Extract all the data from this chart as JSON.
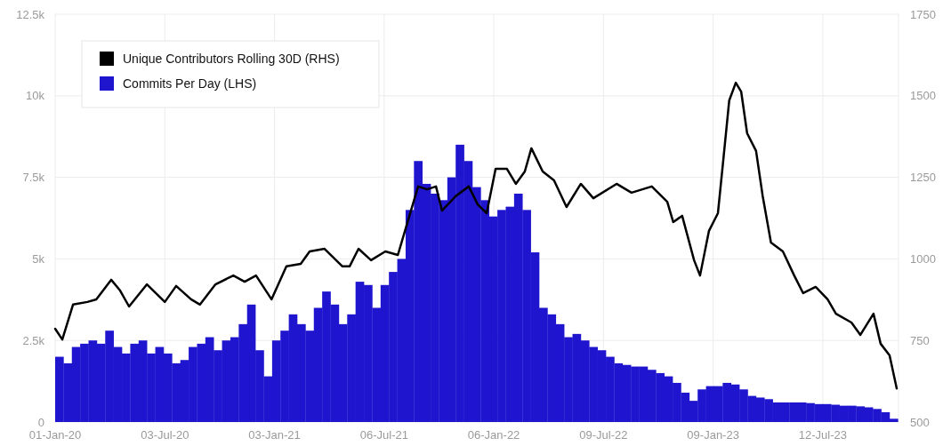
{
  "chart_data": {
    "type": "bar",
    "xlim": [
      "2020-01-01",
      "2023-11-16"
    ],
    "xticks": [
      {
        "value": "2020-01-01",
        "label": "01-Jan-20"
      },
      {
        "value": "2020-07-03",
        "label": "03-Jul-20"
      },
      {
        "value": "2021-01-03",
        "label": "03-Jan-21"
      },
      {
        "value": "2021-07-06",
        "label": "06-Jul-21"
      },
      {
        "value": "2022-01-06",
        "label": "06-Jan-22"
      },
      {
        "value": "2022-07-09",
        "label": "09-Jul-22"
      },
      {
        "value": "2023-01-09",
        "label": "09-Jan-23"
      },
      {
        "value": "2023-07-12",
        "label": "12-Jul-23"
      }
    ],
    "ylim": [
      0,
      12500
    ],
    "yticks": [
      0,
      {
        "value": 2500,
        "label": "2.5k"
      },
      {
        "value": 5000,
        "label": "5k"
      },
      {
        "value": 7500,
        "label": "7.5k"
      },
      {
        "value": 10000,
        "label": "10k"
      },
      {
        "value": 12500,
        "label": "12.5k"
      }
    ],
    "y2lim": [
      500,
      1750
    ],
    "y2ticks": [
      500,
      750,
      1000,
      1250,
      1500,
      1750
    ],
    "grid": true,
    "legend": "top left",
    "series": [
      {
        "name": "Unique Contributors Rolling 30D (RHS)",
        "type": "line",
        "axis": "y2",
        "color": "#000000",
        "x": [
          "2020-01-01",
          "2020-01-13",
          "2020-01-31",
          "2020-02-24",
          "2020-03-10",
          "2020-04-04",
          "2020-04-19",
          "2020-05-04",
          "2020-06-03",
          "2020-07-03",
          "2020-07-22",
          "2020-08-16",
          "2020-08-31",
          "2020-09-26",
          "2020-10-26",
          "2020-11-14",
          "2020-12-03",
          "2020-12-29",
          "2021-01-23",
          "2021-02-16",
          "2021-03-03",
          "2021-03-28",
          "2021-04-27",
          "2021-05-09",
          "2021-05-24",
          "2021-06-14",
          "2021-07-08",
          "2021-07-29",
          "2021-08-13",
          "2021-09-01",
          "2021-09-16",
          "2021-10-01",
          "2021-10-11",
          "2021-11-04",
          "2021-11-25",
          "2021-12-10",
          "2021-12-25",
          "2022-01-09",
          "2022-01-28",
          "2022-02-12",
          "2022-02-27",
          "2022-03-10",
          "2022-03-29",
          "2022-04-17",
          "2022-05-08",
          "2022-06-01",
          "2022-06-22",
          "2022-07-31",
          "2022-08-25",
          "2022-09-28",
          "2022-10-24",
          "2022-11-03",
          "2022-11-18",
          "2022-12-08",
          "2022-12-18",
          "2023-01-02",
          "2023-01-17",
          "2023-01-26",
          "2023-02-05",
          "2023-02-16",
          "2023-02-25",
          "2023-03-07",
          "2023-03-22",
          "2023-04-02",
          "2023-04-16",
          "2023-05-06",
          "2023-05-25",
          "2023-06-09",
          "2023-06-30",
          "2023-07-20",
          "2023-08-03",
          "2023-08-29",
          "2023-09-13",
          "2023-10-05",
          "2023-10-17",
          "2023-11-01",
          "2023-11-13"
        ],
        "values": [
          786,
          753,
          860,
          868,
          876,
          936,
          903,
          854,
          922,
          868,
          917,
          876,
          860,
          922,
          949,
          930,
          949,
          876,
          977,
          985,
          1023,
          1031,
          977,
          977,
          1031,
          996,
          1023,
          1012,
          1105,
          1222,
          1213,
          1222,
          1148,
          1194,
          1222,
          1167,
          1140,
          1276,
          1276,
          1230,
          1268,
          1339,
          1268,
          1241,
          1159,
          1230,
          1186,
          1230,
          1203,
          1222,
          1175,
          1113,
          1132,
          996,
          949,
          1086,
          1140,
          1303,
          1486,
          1540,
          1513,
          1385,
          1331,
          1194,
          1050,
          1023,
          949,
          895,
          914,
          876,
          832,
          805,
          767,
          832,
          740,
          704,
          603
        ]
      },
      {
        "name": "Commits Per Day (LHS)",
        "color": "#2015cf",
        "x": [
          "2020-01-08",
          "2020-01-22",
          "2020-02-05",
          "2020-02-19",
          "2020-03-04",
          "2020-03-18",
          "2020-04-01",
          "2020-04-15",
          "2020-04-29",
          "2020-05-13",
          "2020-05-27",
          "2020-06-10",
          "2020-06-24",
          "2020-07-08",
          "2020-07-22",
          "2020-08-05",
          "2020-08-19",
          "2020-09-02",
          "2020-09-16",
          "2020-09-30",
          "2020-10-14",
          "2020-10-28",
          "2020-11-11",
          "2020-11-25",
          "2020-12-09",
          "2020-12-23",
          "2021-01-06",
          "2021-01-20",
          "2021-02-03",
          "2021-02-17",
          "2021-03-03",
          "2021-03-17",
          "2021-03-31",
          "2021-04-14",
          "2021-04-28",
          "2021-05-12",
          "2021-05-26",
          "2021-06-09",
          "2021-06-23",
          "2021-07-07",
          "2021-07-21",
          "2021-08-04",
          "2021-08-18",
          "2021-09-01",
          "2021-09-15",
          "2021-09-29",
          "2021-10-13",
          "2021-10-27",
          "2021-11-10",
          "2021-11-24",
          "2021-12-08",
          "2021-12-22",
          "2022-01-05",
          "2022-01-19",
          "2022-02-02",
          "2022-02-16",
          "2022-03-02",
          "2022-03-16",
          "2022-03-30",
          "2022-04-13",
          "2022-04-27",
          "2022-05-11",
          "2022-05-25",
          "2022-06-08",
          "2022-06-22",
          "2022-07-06",
          "2022-07-20",
          "2022-08-03",
          "2022-08-17",
          "2022-08-31",
          "2022-09-14",
          "2022-09-28",
          "2022-10-12",
          "2022-10-26",
          "2022-11-09",
          "2022-11-23",
          "2022-12-07",
          "2022-12-21",
          "2023-01-04",
          "2023-01-18",
          "2023-02-01",
          "2023-02-15",
          "2023-03-01",
          "2023-03-15",
          "2023-03-29",
          "2023-04-12",
          "2023-04-26",
          "2023-05-10",
          "2023-05-24",
          "2023-06-07",
          "2023-06-21",
          "2023-07-05",
          "2023-07-19",
          "2023-08-02",
          "2023-08-16",
          "2023-08-30",
          "2023-09-13",
          "2023-09-27",
          "2023-10-11",
          "2023-10-25",
          "2023-11-08"
        ],
        "values": [
          2000,
          1800,
          2300,
          2400,
          2500,
          2400,
          2800,
          2300,
          2100,
          2400,
          2500,
          2100,
          2300,
          2100,
          1800,
          1900,
          2300,
          2400,
          2600,
          2200,
          2500,
          2600,
          3000,
          3600,
          2200,
          1400,
          2500,
          2800,
          3300,
          3000,
          2800,
          3500,
          4000,
          3600,
          3000,
          3300,
          4300,
          4200,
          3500,
          4200,
          4600,
          5000,
          6500,
          8000,
          7300,
          7000,
          6800,
          7500,
          8500,
          8000,
          7200,
          6800,
          6300,
          6500,
          6600,
          7000,
          6500,
          5200,
          3500,
          3300,
          3000,
          2600,
          2700,
          2500,
          2300,
          2200,
          2000,
          1800,
          1750,
          1700,
          1700,
          1600,
          1500,
          1400,
          1200,
          900,
          650,
          1000,
          1100,
          1100,
          1200,
          1150,
          1000,
          800,
          750,
          700,
          600,
          600,
          600,
          600,
          580,
          550,
          550,
          530,
          500,
          500,
          480,
          450,
          400,
          300,
          100
        ]
      }
    ]
  }
}
